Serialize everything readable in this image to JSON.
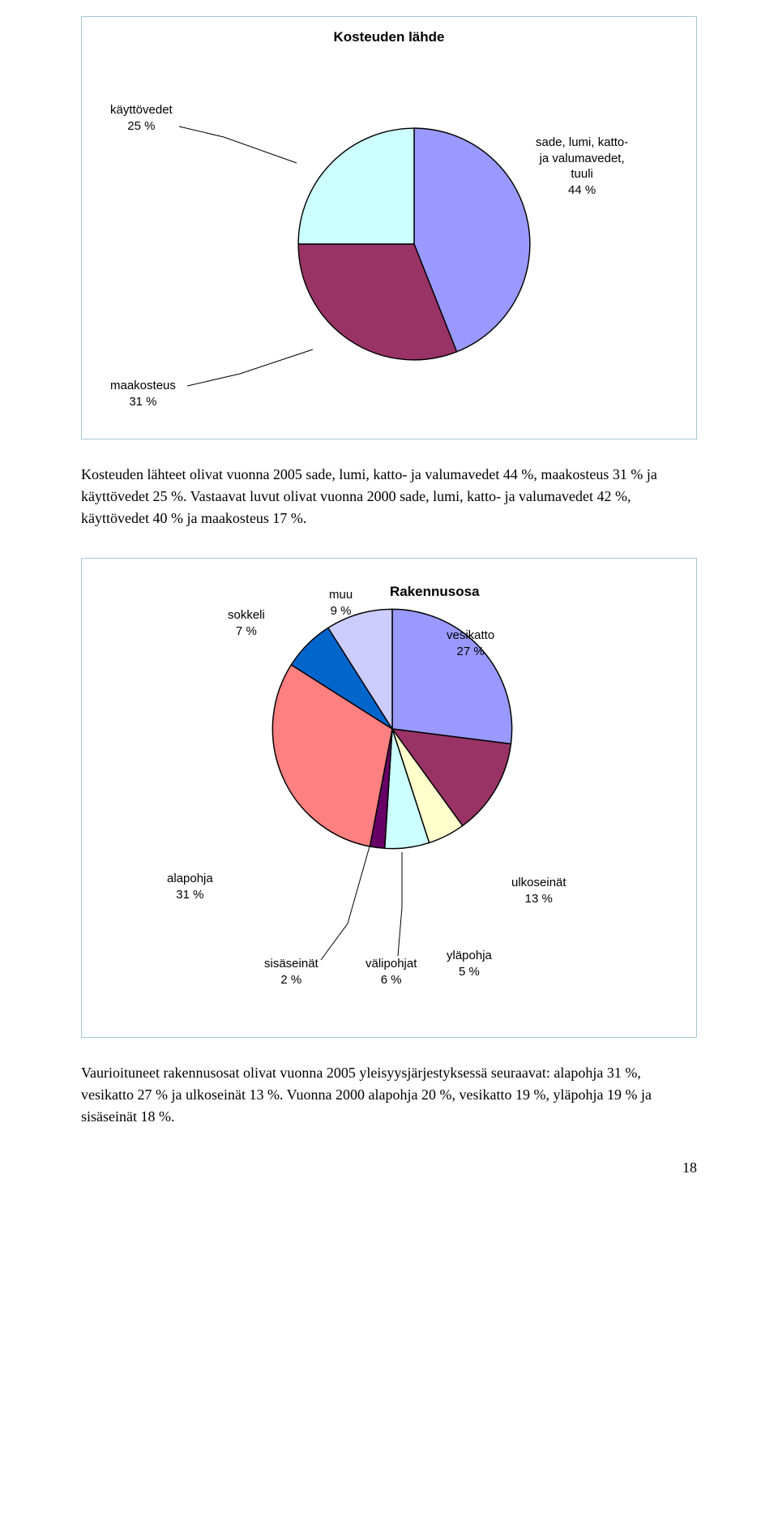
{
  "chart1": {
    "title": "Kosteuden lähde",
    "type": "pie",
    "box_border": "#a6c8d4",
    "stroke": "#000000",
    "slices": {
      "sade": {
        "value": 44,
        "color": "#9999ff",
        "label_lines": [
          "sade, lumi, katto-",
          "ja valumavedet,",
          "tuuli",
          "44 %"
        ]
      },
      "maakosteus": {
        "value": 31,
        "color": "#993366",
        "label_lines": [
          "maakosteus",
          "31 %"
        ]
      },
      "kayttovedet": {
        "value": 25,
        "color": "#ccffff",
        "label_lines": [
          "käyttövedet",
          "25 %"
        ]
      }
    }
  },
  "para1": "Kosteuden lähteet olivat vuonna 2005 sade, lumi, katto- ja valumavedet 44 %, maakosteus 31 % ja käyttövedet 25 %. Vastaavat luvut olivat vuonna 2000 sade, lumi, katto- ja valumavedet 42 %, käyttövedet 40 % ja maakosteus 17 %.",
  "chart2": {
    "title": "Rakennusosa",
    "type": "pie",
    "box_border": "#a6c8d4",
    "stroke": "#000000",
    "slices": {
      "vesikatto": {
        "value": 27,
        "color": "#9999ff",
        "label_lines": [
          "vesikatto",
          "27 %"
        ]
      },
      "ulkoseinat": {
        "value": 13,
        "color": "#993366",
        "label_lines": [
          "ulkoseinät",
          "13 %"
        ]
      },
      "ylapohja": {
        "value": 5,
        "color": "#ffffcc",
        "label_lines": [
          "yläpohja",
          "5 %"
        ]
      },
      "valipohjat": {
        "value": 6,
        "color": "#ccffff",
        "label_lines": [
          "välipohjat",
          "6 %"
        ]
      },
      "sisaseinat": {
        "value": 2,
        "color": "#660066",
        "label_lines": [
          "sisäseinät",
          "2 %"
        ]
      },
      "alapohja": {
        "value": 31,
        "color": "#ff8080",
        "label_lines": [
          "alapohja",
          "31 %"
        ]
      },
      "sokkeli": {
        "value": 7,
        "color": "#0066cc",
        "label_lines": [
          "sokkeli",
          "7 %"
        ]
      },
      "muu": {
        "value": 9,
        "color": "#ccccff",
        "label_lines": [
          "muu",
          "9 %"
        ]
      }
    }
  },
  "para2": "Vaurioituneet rakennusosat olivat vuonna 2005 yleisyysjärjestyksessä seuraavat: alapohja 31 %, vesikatto 27 % ja ulkoseinät 13 %. Vuonna 2000 alapohja 20 %, vesikatto 19 %, yläpohja 19 % ja sisäseinät 18 %.",
  "page_number": "18"
}
